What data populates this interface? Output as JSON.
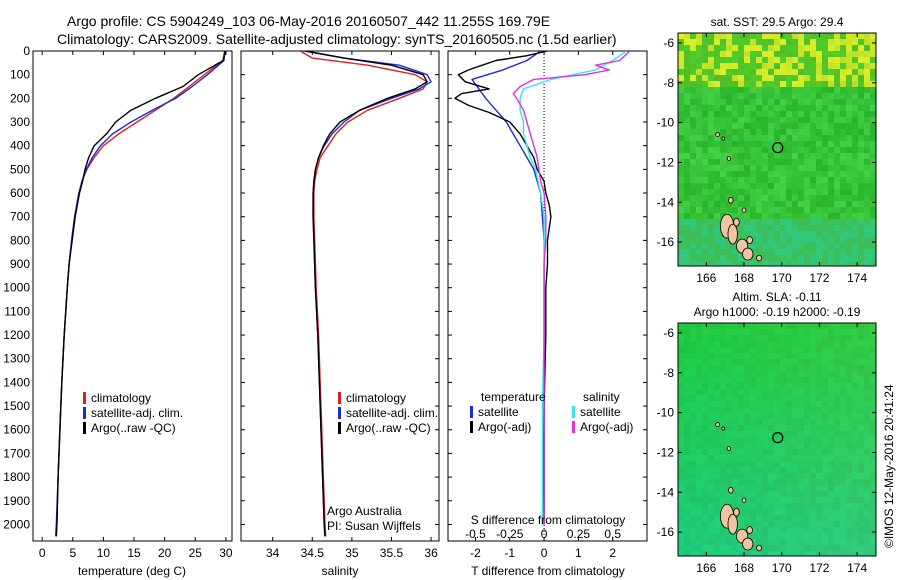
{
  "header": {
    "line1": "Argo profile: CS 5904249_103 06-May-2016 20160507_442 11.255S 169.79E",
    "line2": "Climatology: CARS2009. Satellite-adjusted climatology: synTS_20160505.nc (1.5d earlier)"
  },
  "colors": {
    "climatology": "#e0201a",
    "satellite": "#1a2ae0",
    "argo": "#000000",
    "sal_satellite": "#35e8e8",
    "sal_argo": "#e030e0",
    "sst_bg": "#3cc23c",
    "sla_bg": "#2bd15a",
    "land": "#f0c4a0"
  },
  "depth_axis": {
    "ticks": [
      0,
      100,
      200,
      300,
      400,
      500,
      600,
      700,
      800,
      900,
      1000,
      1100,
      1200,
      1300,
      1400,
      1500,
      1600,
      1700,
      1800,
      1900,
      2000
    ],
    "range": [
      0,
      2070
    ]
  },
  "chart_data": [
    {
      "type": "line",
      "id": "temperature",
      "xlabel": "temperature (deg C)",
      "xlim": [
        -1.5,
        31
      ],
      "xticks": [
        0,
        5,
        10,
        15,
        20,
        25,
        30
      ],
      "ylim": [
        2070,
        0
      ],
      "legend": [
        "climatology",
        "satellite-adj. clim.",
        "Argo(..raw -QC)"
      ],
      "series": [
        {
          "name": "climatology",
          "color": "#e0201a",
          "depth": [
            0,
            40,
            60,
            100,
            150,
            200,
            250,
            300,
            350,
            400,
            450,
            500,
            550,
            600,
            700,
            800,
            900,
            1000,
            1200,
            1400,
            1600,
            1800,
            2000,
            2050
          ],
          "values": [
            29.8,
            29.5,
            28.5,
            26.5,
            24,
            21.5,
            18.5,
            15.5,
            12.5,
            10,
            8.5,
            7.3,
            6.5,
            6,
            5.3,
            4.8,
            4.4,
            4.1,
            3.6,
            3.2,
            2.9,
            2.6,
            2.4,
            2.3
          ]
        },
        {
          "name": "satellite-adj. clim.",
          "color": "#1a2ae0",
          "depth": [
            0,
            40,
            60,
            100,
            150,
            200,
            250,
            300,
            350,
            400,
            450,
            500,
            550,
            600,
            700,
            800,
            900,
            1000,
            1200,
            1400,
            1600,
            1800,
            2000,
            2050
          ],
          "values": [
            29.8,
            29.7,
            28.8,
            27,
            24.5,
            21.8,
            18,
            14.5,
            11.5,
            9.5,
            8.2,
            7.2,
            6.5,
            6,
            5.3,
            4.8,
            4.4,
            4.1,
            3.6,
            3.2,
            2.9,
            2.6,
            2.3,
            2.2
          ]
        },
        {
          "name": "Argo(..raw -QC)",
          "color": "#000000",
          "depth": [
            0,
            40,
            60,
            100,
            150,
            200,
            250,
            300,
            350,
            400,
            450,
            500,
            550,
            600,
            700,
            800,
            900,
            1000,
            1200,
            1400,
            1600,
            1800,
            2000,
            2050
          ],
          "values": [
            29.9,
            29.6,
            28.2,
            25.5,
            23,
            18.5,
            14.5,
            12,
            10.5,
            8.5,
            7.6,
            7,
            6.6,
            6.1,
            5.4,
            4.9,
            4.4,
            4.1,
            3.6,
            3.2,
            2.9,
            2.6,
            2.4,
            2.3
          ]
        }
      ]
    },
    {
      "type": "line",
      "id": "salinity",
      "xlabel": "salinity",
      "xlim": [
        33.6,
        36.1
      ],
      "xticks": [
        34,
        34.5,
        35,
        35.5,
        36
      ],
      "ylim": [
        2070,
        0
      ],
      "legend": [
        "climatology",
        "satellite-adj. clim.",
        "Argo(..raw -QC)"
      ],
      "annotations": [
        "Argo Australia",
        "PI: Susan Wijffels"
      ],
      "series": [
        {
          "name": "climatology",
          "color": "#e0201a",
          "depth": [
            0,
            30,
            60,
            100,
            130,
            160,
            200,
            250,
            300,
            350,
            400,
            450,
            500,
            550,
            600,
            700,
            800,
            1000,
            1200,
            1500,
            1800,
            2000,
            2050
          ],
          "values": [
            34.35,
            34.5,
            35.2,
            35.8,
            35.95,
            35.9,
            35.6,
            35.2,
            34.95,
            34.8,
            34.7,
            34.6,
            34.56,
            34.53,
            34.52,
            34.52,
            34.53,
            34.55,
            34.58,
            34.61,
            34.64,
            34.66,
            34.67
          ]
        },
        {
          "name": "satellite-adj. clim.",
          "color": "#1a2ae0",
          "depth": [
            0,
            30,
            60,
            100,
            130,
            160,
            200,
            250,
            300,
            350,
            400,
            450,
            500,
            550,
            600,
            700,
            800,
            1000,
            1200,
            1500,
            1800,
            2000,
            2050
          ],
          "values": [
            34.4,
            34.9,
            35.6,
            35.95,
            36.0,
            35.85,
            35.5,
            35.1,
            34.9,
            34.75,
            34.65,
            34.58,
            34.54,
            34.52,
            34.51,
            34.51,
            34.52,
            34.54,
            34.57,
            34.6,
            34.63,
            34.65,
            34.66
          ]
        },
        {
          "name": "Argo(..raw -QC)",
          "color": "#000000",
          "depth": [
            0,
            30,
            60,
            100,
            130,
            160,
            200,
            250,
            300,
            350,
            400,
            450,
            500,
            550,
            600,
            700,
            800,
            1000,
            1200,
            1500,
            1800,
            2000,
            2050
          ],
          "values": [
            34.42,
            34.9,
            35.5,
            35.9,
            35.95,
            35.8,
            35.45,
            35.1,
            34.85,
            34.72,
            34.64,
            34.58,
            34.54,
            34.52,
            34.51,
            34.51,
            34.52,
            34.54,
            34.57,
            34.6,
            34.63,
            34.65,
            34.66
          ]
        }
      ]
    },
    {
      "type": "line",
      "id": "difference",
      "xlabel_top": "S difference from climatology",
      "xlabel": "T difference from climatology",
      "xlim": [
        -2.8,
        3.0
      ],
      "xticks_T": [
        -2,
        -1,
        0,
        1,
        2
      ],
      "xticks_S_labels": [
        "-0.5",
        "-0.25",
        "0",
        "0.25",
        "0.5"
      ],
      "ylim": [
        2070,
        0
      ],
      "legend_T": [
        "temperature",
        "satellite",
        "Argo(-adj)"
      ],
      "legend_S": [
        "salinity",
        "satellite",
        "Argo(-adj)"
      ],
      "series": [
        {
          "name": "satellite",
          "color": "#1a2ae0",
          "depth": [
            0,
            40,
            80,
            120,
            160,
            200,
            250,
            300,
            350,
            400,
            450,
            500,
            550,
            600,
            700,
            800,
            900,
            1000,
            1200,
            1500,
            2000
          ],
          "values": [
            -0.1,
            -0.5,
            -1.2,
            -2.1,
            -1.9,
            -1.7,
            -1.4,
            -1.1,
            -0.9,
            -0.7,
            -0.5,
            -0.3,
            -0.2,
            -0.1,
            -0.05,
            0,
            0,
            0,
            0,
            0,
            -0.05
          ]
        },
        {
          "name": "Argo(-adj)",
          "color": "#000000",
          "depth": [
            0,
            20,
            40,
            60,
            80,
            100,
            130,
            160,
            180,
            200,
            230,
            260,
            300,
            350,
            400,
            450,
            500,
            550,
            600,
            650,
            700,
            800,
            900,
            1000,
            1200,
            1500,
            1700,
            2000
          ],
          "values": [
            0.1,
            -0.5,
            -1.4,
            -1.8,
            -2.2,
            -2.5,
            -2.3,
            -1.6,
            -2.4,
            -2.6,
            -2.2,
            -1.6,
            -1.0,
            -0.7,
            -0.5,
            -0.3,
            -0.2,
            0,
            0.05,
            0.15,
            0.2,
            0.1,
            0.1,
            0.05,
            0.05,
            0,
            0,
            0
          ]
        },
        {
          "name": "satellite",
          "color": "#35e8e8",
          "depth": [
            0,
            40,
            80,
            120,
            160,
            200,
            250,
            300,
            350,
            400,
            450,
            500,
            600,
            700,
            800,
            900,
            1000,
            1200,
            1500,
            1800,
            2000
          ],
          "values": [
            2.4,
            2.0,
            1.5,
            0.2,
            -0.6,
            -0.7,
            -0.7,
            -0.6,
            -0.6,
            -0.5,
            -0.4,
            -0.25,
            -0.1,
            0,
            0,
            0,
            0,
            0,
            -0.05,
            -0.05,
            -0.05
          ]
        },
        {
          "name": "Argo(-adj)",
          "color": "#e030e0",
          "depth": [
            0,
            40,
            60,
            80,
            100,
            120,
            150,
            180,
            200,
            250,
            300,
            350,
            400,
            450,
            500,
            550,
            600,
            700,
            800,
            900,
            1000,
            1200,
            1500,
            2000
          ],
          "values": [
            2.5,
            2.2,
            1.5,
            1.9,
            1.2,
            -0.3,
            -0.7,
            -0.9,
            -0.8,
            -0.6,
            -0.5,
            -0.4,
            -0.3,
            -0.2,
            -0.15,
            -0.1,
            0,
            0.05,
            0.05,
            0,
            0,
            0,
            0,
            0
          ]
        }
      ]
    },
    {
      "type": "heatmap",
      "id": "sst_map",
      "title": "sat. SST: 29.5 Argo: 29.4",
      "xlim": [
        164.5,
        175
      ],
      "ylim": [
        -17.2,
        -5.5
      ],
      "xticks": [
        166,
        168,
        170,
        172,
        174
      ],
      "yticks": [
        -6,
        -8,
        -10,
        -12,
        -14,
        -16
      ],
      "marker": {
        "lon": 169.79,
        "lat": -11.255
      }
    },
    {
      "type": "heatmap",
      "id": "sla_map",
      "title": "Altim. SLA: -0.11",
      "subtitle": "Argo h1000: -0.19 h2000: -0.19",
      "xlim": [
        164.5,
        175
      ],
      "ylim": [
        -17.2,
        -5.5
      ],
      "xticks": [
        166,
        168,
        170,
        172,
        174
      ],
      "yticks": [
        -6,
        -8,
        -10,
        -12,
        -14,
        -16
      ],
      "marker": {
        "lon": 169.79,
        "lat": -11.255
      }
    }
  ],
  "footer_stamp": "©IMOS 12-May-2016 20:41:24"
}
